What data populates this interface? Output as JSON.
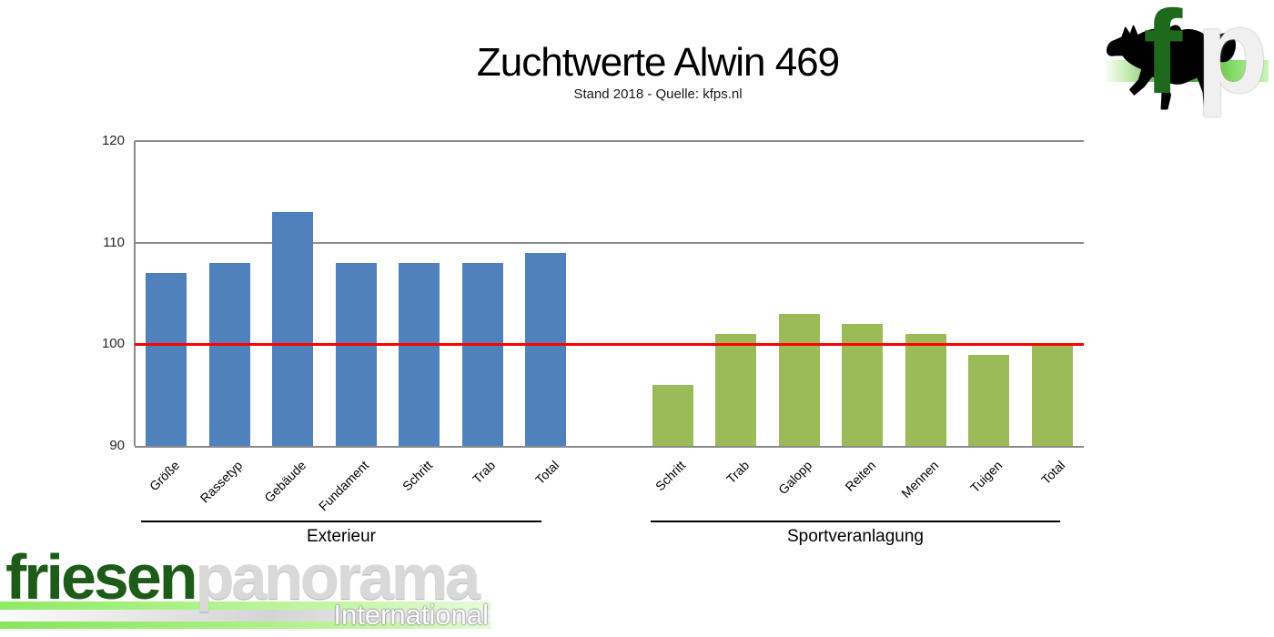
{
  "title": "Zuchtwerte Alwin 469",
  "subtitle": "Stand 2018 - Quelle: kfps.nl",
  "colors": {
    "exterieur_bar": "#4F81BD",
    "sport_bar": "#9BBB59",
    "reference_line": "#FF0000",
    "gridline": "#8E8E8E",
    "logo_dark_green": "#1D5C18",
    "logo_light_green": "#8DEB63"
  },
  "chart_data": {
    "type": "bar",
    "title": "Zuchtwerte Alwin 469",
    "subtitle": "Stand 2018 - Quelle: kfps.nl",
    "ylim": [
      90,
      120
    ],
    "yticks": [
      90,
      100,
      110,
      120
    ],
    "reference_line": 100,
    "grid": true,
    "legend_position": "none",
    "groups": [
      {
        "label": "Exterieur",
        "color": "#4F81BD",
        "categories": [
          "Größe",
          "Rassetyp",
          "Gebäude",
          "Fundament",
          "Schritt",
          "Trab",
          "Total"
        ],
        "values": [
          107,
          108,
          113,
          108,
          108,
          108,
          109
        ]
      },
      {
        "label": "Sportveranlagung",
        "color": "#9BBB59",
        "categories": [
          "Schritt",
          "Trab",
          "Galopp",
          "Reiten",
          "Mennen",
          "Tuigen",
          "Total"
        ],
        "values": [
          96,
          101,
          103,
          102,
          101,
          99,
          100
        ]
      }
    ]
  },
  "logos": {
    "fp": {
      "f": "f",
      "p": "p"
    },
    "friesenpanorama": {
      "green_text": "friesen",
      "gray_text": "panorama",
      "subtext": "International"
    }
  }
}
